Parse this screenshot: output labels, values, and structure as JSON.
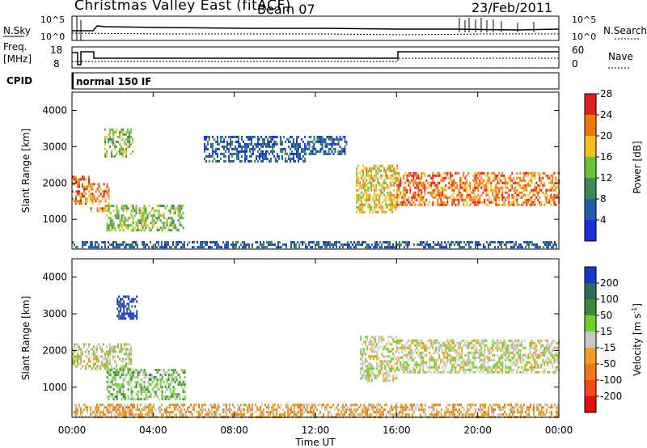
{
  "header": {
    "title": "Christmas Valley East (fitACF)",
    "beam": "Beam 07",
    "date": "23/Feb/2011"
  },
  "noise_panel": {
    "left_label": "N.Sky",
    "right_label": "N.Search",
    "left_ticks": [
      "10^5",
      "10^0"
    ],
    "right_ticks": [
      "10^5",
      "10^0"
    ]
  },
  "freq_panel": {
    "left_label_line1": "Freq.",
    "left_label_line2": "[MHz]",
    "right_label": "Nave",
    "left_ticks": [
      "18",
      "8"
    ],
    "right_ticks": [
      "60",
      "0"
    ]
  },
  "cpid": {
    "label": "CPID",
    "value": "normal 150 IF"
  },
  "chart_data": [
    {
      "type": "heatmap",
      "parameter": "Power",
      "ylabel": "Slant Range [km]",
      "yticks": [
        1000,
        2000,
        3000,
        4000
      ],
      "ylim": [
        180,
        4500
      ],
      "colorbar_label": "Power [dB]",
      "colorbar_ticks": [
        "4",
        "8",
        "12",
        "16",
        "20",
        "24",
        "28"
      ],
      "colors": [
        "#1f2fd8",
        "#2060a8",
        "#3c8a5a",
        "#69c23c",
        "#f0c020",
        "#f07810",
        "#e02020"
      ],
      "regions": [
        {
          "t0": 0.0,
          "t1": 0.9,
          "r0": 1400,
          "r1": 2200,
          "level": 5
        },
        {
          "t0": 0.9,
          "t1": 1.8,
          "r0": 1200,
          "r1": 2000,
          "level": 5
        },
        {
          "t0": 1.6,
          "t1": 3.0,
          "r0": 2700,
          "r1": 3500,
          "level": 3
        },
        {
          "t0": 1.7,
          "t1": 5.5,
          "r0": 700,
          "r1": 1400,
          "level": 3
        },
        {
          "t0": 6.5,
          "t1": 11.5,
          "r0": 2600,
          "r1": 3300,
          "level": 1
        },
        {
          "t0": 11.5,
          "t1": 13.5,
          "r0": 2800,
          "r1": 3300,
          "level": 1
        },
        {
          "t0": 14.0,
          "t1": 16.0,
          "r0": 1200,
          "r1": 2500,
          "level": 4
        },
        {
          "t0": 16.0,
          "t1": 24.0,
          "r0": 1400,
          "r1": 2300,
          "level": 5
        },
        {
          "t0": 0.0,
          "t1": 24.0,
          "r0": 200,
          "r1": 400,
          "level": 1
        }
      ]
    },
    {
      "type": "heatmap",
      "parameter": "Velocity",
      "ylabel": "Slant Range [km]",
      "yticks": [
        1000,
        2000,
        3000,
        4000
      ],
      "ylim": [
        180,
        4500
      ],
      "xlabel": "Time UT",
      "xticks": [
        "00:00",
        "04:00",
        "08:00",
        "12:00",
        "16:00",
        "20:00",
        "00:00"
      ],
      "xlim": [
        0,
        24
      ],
      "colorbar_label": "Velocity [m s",
      "colorbar_unit_sup": "-1",
      "colorbar_label_end": "]",
      "colorbar_ticks": [
        "200",
        "100",
        "50",
        "15",
        "-15",
        "-50",
        "-100",
        "-200"
      ],
      "colors": [
        "#1838c8",
        "#2e6a60",
        "#3a8a3a",
        "#6cd02a",
        "#c8c8c8",
        "#f0a020",
        "#f07818",
        "#f04818",
        "#e01010"
      ],
      "regions": [
        {
          "t0": 0.0,
          "t1": 2.9,
          "r0": 1500,
          "r1": 2200,
          "level": 4
        },
        {
          "t0": 2.2,
          "t1": 3.2,
          "r0": 2900,
          "r1": 3500,
          "level": 0
        },
        {
          "t0": 1.7,
          "t1": 5.6,
          "r0": 700,
          "r1": 1500,
          "level": 3
        },
        {
          "t0": 14.2,
          "t1": 16.0,
          "r0": 1200,
          "r1": 2400,
          "level": 4
        },
        {
          "t0": 16.0,
          "t1": 24.0,
          "r0": 1400,
          "r1": 2300,
          "level": 4
        },
        {
          "t0": 0.0,
          "t1": 24.0,
          "r0": 200,
          "r1": 550,
          "level": 5
        }
      ]
    }
  ]
}
